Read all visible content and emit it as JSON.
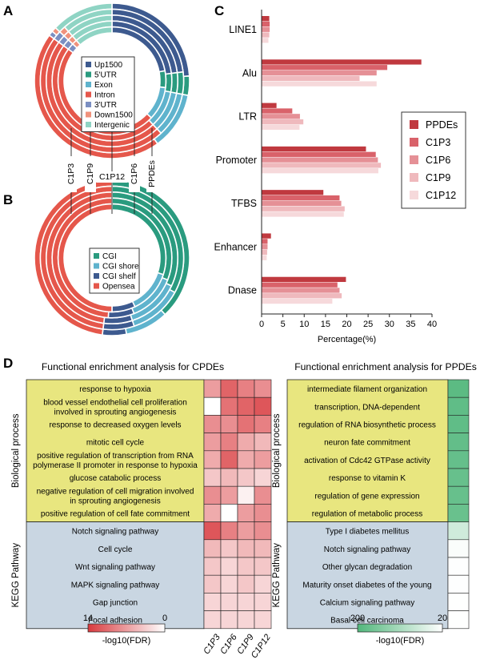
{
  "panel_labels": {
    "a": "A",
    "b": "B",
    "c": "C",
    "d": "D"
  },
  "donut_a": {
    "legend": [
      {
        "label": "Up1500",
        "color": "#3d5a8f"
      },
      {
        "label": "5'UTR",
        "color": "#2a9b7f"
      },
      {
        "label": "Exon",
        "color": "#5fb3cd"
      },
      {
        "label": "Intron",
        "color": "#e5574b"
      },
      {
        "label": "3'UTR",
        "color": "#7b8fc2"
      },
      {
        "label": "Down1500",
        "color": "#f0927c"
      },
      {
        "label": "Intergenic",
        "color": "#8fd4c4"
      }
    ],
    "rings": [
      {
        "name": "PPDEs",
        "values": [
          24,
          4,
          12,
          45,
          1,
          1,
          13
        ]
      },
      {
        "name": "C1P6",
        "values": [
          23,
          5,
          10,
          47,
          2,
          1.5,
          11.5
        ]
      },
      {
        "name": "C1P12",
        "values": [
          23,
          5,
          10,
          47,
          2,
          1.5,
          11.5
        ]
      },
      {
        "name": "C1P9",
        "values": [
          23,
          5,
          10,
          47,
          2,
          1.5,
          11.5
        ]
      },
      {
        "name": "C1P3",
        "values": [
          22,
          5,
          10,
          48,
          2,
          1.5,
          11.5
        ]
      }
    ]
  },
  "donut_b": {
    "legend": [
      {
        "label": "CGI",
        "color": "#2a9b7f"
      },
      {
        "label": "CGI shore",
        "color": "#5fb3cd"
      },
      {
        "label": "CGI shelf",
        "color": "#3d5a8f"
      },
      {
        "label": "Opensea",
        "color": "#e5574b"
      }
    ],
    "rings": [
      {
        "name": "PPDEs",
        "values": [
          38,
          9,
          5,
          48
        ]
      },
      {
        "name": "C1P6",
        "values": [
          33,
          12,
          7,
          48
        ]
      },
      {
        "name": "C1P12",
        "values": [
          32,
          13,
          7,
          48
        ]
      },
      {
        "name": "C1P9",
        "values": [
          31,
          13,
          7,
          49
        ]
      },
      {
        "name": "C1P3",
        "values": [
          30,
          13,
          7,
          50
        ]
      }
    ]
  },
  "ring_labels": [
    "C1P3",
    "C1P9",
    "C1P12",
    "C1P6",
    "PPDEs"
  ],
  "chart_data": [
    {
      "type": "bar",
      "orientation": "horizontal",
      "categories": [
        "LINE1",
        "Alu",
        "LTR",
        "Promoter",
        "TFBS",
        "Enhancer",
        "Dnase"
      ],
      "series": [
        {
          "name": "PPDEs",
          "color": "#c0393f",
          "values": [
            1.8,
            37.5,
            3.5,
            24.5,
            14.5,
            2.2,
            19.8
          ]
        },
        {
          "name": "C1P3",
          "color": "#d9626a",
          "values": [
            1.9,
            29.5,
            7.2,
            26.8,
            18.3,
            1.4,
            17.8
          ]
        },
        {
          "name": "C1P6",
          "color": "#e59096",
          "values": [
            1.9,
            27.0,
            9.0,
            27.3,
            18.7,
            1.4,
            18.3
          ]
        },
        {
          "name": "C1P9",
          "color": "#efb9bd",
          "values": [
            1.8,
            23.0,
            9.8,
            28.0,
            19.5,
            1.3,
            18.8
          ]
        },
        {
          "name": "C1P12",
          "color": "#f6d9db",
          "values": [
            1.6,
            27.0,
            8.9,
            27.4,
            19.3,
            1.2,
            16.6
          ]
        }
      ],
      "xlabel": "Percentage(%)",
      "xlim": [
        0,
        40
      ],
      "xticks": [
        0,
        5,
        10,
        15,
        20,
        25,
        30,
        35,
        40
      ]
    },
    {
      "type": "heatmap",
      "title": "Functional enrichment analysis for CPDEs",
      "columns": [
        "C1P3",
        "C1P6",
        "C1P9",
        "C1P12"
      ],
      "groups": [
        {
          "name": "Biological process",
          "color": "#e8e67f",
          "start": 0,
          "end": 8
        },
        {
          "name": "KEGG Pathway",
          "color": "#c9d6e2",
          "start": 8,
          "end": 14
        }
      ],
      "rows": [
        "response to hypoxia",
        "blood vessel endothelial cell proliferation\ninvolved in sprouting angiogenesis",
        "response to decreased oxygen levels",
        "mitotic cell cycle",
        "positive regulation of transcription from RNA\npolymerase II promoter in response to hypoxia",
        "glucose catabolic process",
        "negative regulation of cell migration involved\nin sprouting angiogenesis",
        "positive regulation of cell fate commitment",
        "Notch signaling pathway",
        "Cell cycle",
        "Wnt signaling pathway",
        "MAPK signaling pathway",
        "Gap junction",
        "Focal adhesion"
      ],
      "values": [
        [
          7,
          11,
          9,
          8
        ],
        [
          0,
          10,
          11,
          12
        ],
        [
          8,
          8,
          10,
          9
        ],
        [
          7,
          9,
          6,
          5
        ],
        [
          6,
          11,
          6,
          7
        ],
        [
          4,
          5,
          4,
          3
        ],
        [
          8,
          7,
          1,
          8
        ],
        [
          6,
          0,
          7,
          8
        ],
        [
          12,
          9,
          7,
          8
        ],
        [
          5,
          4,
          5,
          5
        ],
        [
          4,
          3,
          4,
          4
        ],
        [
          4,
          3,
          4,
          3
        ],
        [
          3,
          3,
          3,
          3
        ],
        [
          3,
          3,
          3,
          3
        ]
      ],
      "scale": {
        "min": 0,
        "max": 14,
        "low_color": "#ffffff",
        "high_color": "#d93a3e"
      },
      "colorbar": {
        "left_label": "14",
        "right_label": "0",
        "caption": "-log10(FDR)"
      }
    },
    {
      "type": "heatmap",
      "title": "Functional enrichment analysis for PPDEs",
      "columns": [
        "PPDEs"
      ],
      "groups": [
        {
          "name": "Biological process",
          "color": "#e8e67f",
          "start": 0,
          "end": 8
        },
        {
          "name": "KEGG Pathway",
          "color": "#c9d6e2",
          "start": 8,
          "end": 14
        }
      ],
      "rows": [
        "intermediate filament organization",
        "transcription, DNA-dependent",
        "regulation of RNA biosynthetic process",
        "neuron fate commitment",
        "activation of Cdc42 GTPase activity",
        "response to vitamin K",
        "regulation of gene expression",
        "regulation of metabolic process",
        "Type I diabetes mellitus",
        "Notch signaling pathway",
        "Other glycan degradation",
        "Maturity onset diabetes of the young",
        "Calcium signaling pathway",
        "Basal cell carcinoma"
      ],
      "values": [
        [
          190
        ],
        [
          185
        ],
        [
          185
        ],
        [
          182
        ],
        [
          180
        ],
        [
          178
        ],
        [
          178
        ],
        [
          176
        ],
        [
          70
        ],
        [
          25
        ],
        [
          22
        ],
        [
          22
        ],
        [
          21
        ],
        [
          21
        ]
      ],
      "scale": {
        "min": 20,
        "max": 200,
        "low_color": "#ffffff",
        "high_color": "#52b77c"
      },
      "colorbar": {
        "left_label": "200",
        "right_label": "20",
        "caption": "-log10(FDR)"
      }
    }
  ]
}
